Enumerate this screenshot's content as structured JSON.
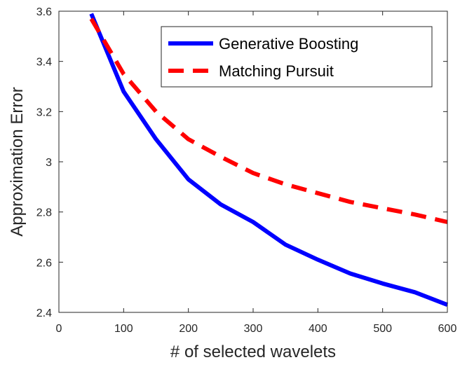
{
  "chart_data": {
    "type": "line",
    "xlabel": "# of selected wavelets",
    "ylabel": "Approximation Error",
    "xlim": [
      0,
      600
    ],
    "ylim": [
      2.4,
      3.6
    ],
    "x_ticks": [
      "0",
      "100",
      "200",
      "300",
      "400",
      "500",
      "600"
    ],
    "y_ticks": [
      "2.4",
      "2.6",
      "2.8",
      "3",
      "3.2",
      "3.4",
      "3.6"
    ],
    "grid": false,
    "legend_position": "top-right",
    "series": [
      {
        "name": "Generative Boosting",
        "color": "#0000ff",
        "style": "solid",
        "x": [
          50,
          100,
          150,
          200,
          250,
          300,
          350,
          400,
          450,
          500,
          550,
          600
        ],
        "y": [
          3.59,
          3.28,
          3.09,
          2.93,
          2.83,
          2.76,
          2.67,
          2.61,
          2.555,
          2.515,
          2.48,
          2.43
        ]
      },
      {
        "name": "Matching Pursuit",
        "color": "#ff0000",
        "style": "dashed",
        "x": [
          50,
          100,
          150,
          200,
          250,
          300,
          350,
          400,
          450,
          500,
          550,
          600
        ],
        "y": [
          3.57,
          3.35,
          3.2,
          3.09,
          3.02,
          2.955,
          2.91,
          2.875,
          2.84,
          2.815,
          2.79,
          2.76
        ]
      }
    ]
  }
}
